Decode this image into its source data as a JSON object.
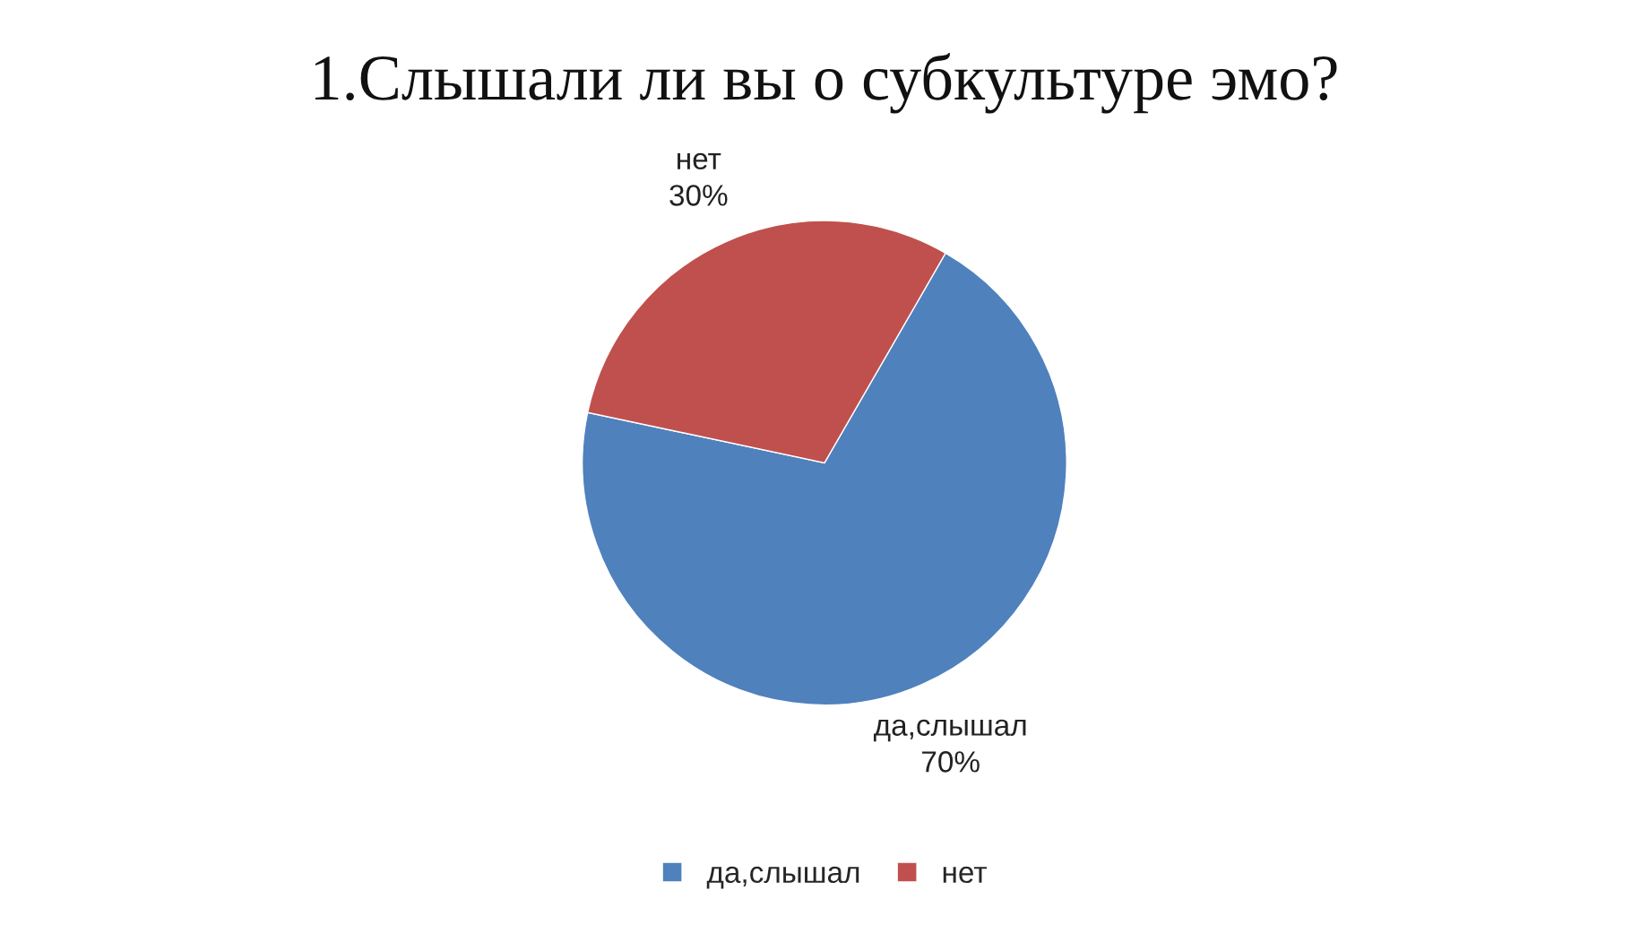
{
  "chart_data": {
    "type": "pie",
    "title": "1.Слышали ли вы о субкультуре эмо?",
    "categories": [
      "да,слышал",
      "нет"
    ],
    "values": [
      70,
      30
    ],
    "value_labels": [
      "70%",
      "30%"
    ],
    "colors": [
      "#4f81bd",
      "#c0504d"
    ],
    "legend": "bottom"
  }
}
